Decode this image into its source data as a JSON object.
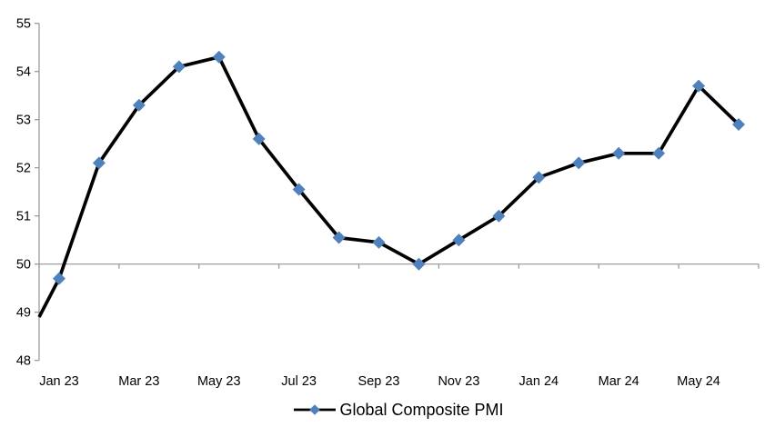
{
  "chart_data": {
    "type": "line",
    "ylim": [
      48,
      55
    ],
    "yticks": [
      48,
      49,
      50,
      51,
      52,
      53,
      54,
      55
    ],
    "x_tick_labels": [
      "Jan 23",
      "Mar 23",
      "May 23",
      "Jul 23",
      "Sep 23",
      "Nov 23",
      "Jan 24",
      "Mar 24",
      "May 24"
    ],
    "x_axis_position_value": 50,
    "grid": false,
    "legend": {
      "position": "bottom-center",
      "label": "Global Composite PMI"
    },
    "axis_color": "#949494",
    "text_color": "#000000",
    "categories": [
      "Jan 23",
      "Feb 23",
      "Mar 23",
      "Apr 23",
      "May 23",
      "Jun 23",
      "Jul 23",
      "Aug 23",
      "Sep 23",
      "Oct 23",
      "Nov 23",
      "Dec 23",
      "Jan 24",
      "Feb 24",
      "Mar 24",
      "Apr 24",
      "May 24",
      "Jun 24"
    ],
    "series": [
      {
        "name": "Global Composite PMI",
        "line_color": "#000000",
        "marker": "diamond",
        "marker_color": "#4F81BD",
        "values": [
          49.7,
          52.1,
          53.3,
          54.1,
          54.3,
          52.6,
          51.55,
          50.55,
          50.45,
          50.0,
          50.5,
          51.0,
          51.8,
          52.1,
          52.3,
          52.3,
          53.7,
          52.9
        ],
        "leading_edge_value_at_axis": 48.9
      }
    ]
  }
}
